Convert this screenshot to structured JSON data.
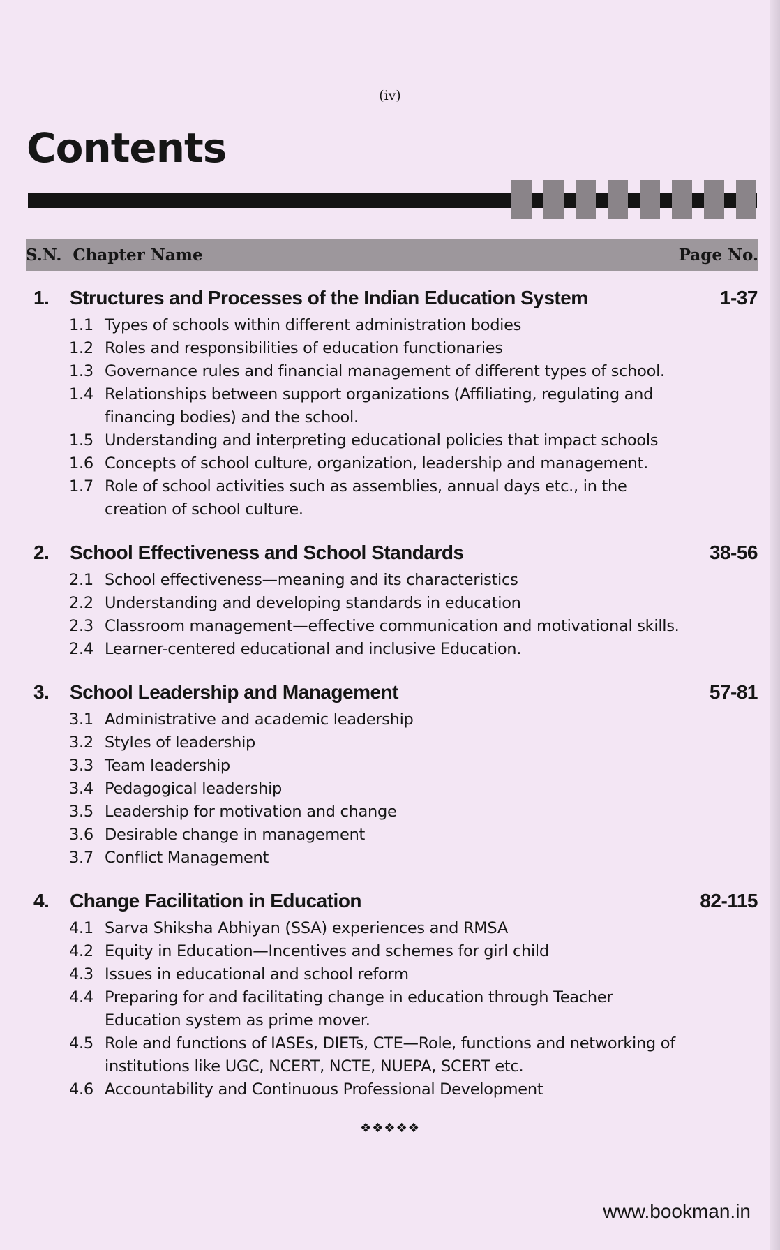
{
  "page_number": "(iv)",
  "title": "Contents",
  "header": {
    "sn": "S.N.",
    "chapter_name": "Chapter Name",
    "page_no": "Page No."
  },
  "chapters": [
    {
      "num": "1.",
      "title": "Structures and Processes of the Indian Education System",
      "pages": "1-37",
      "items": [
        {
          "num": "1.1",
          "text": "Types of schools within different administration bodies"
        },
        {
          "num": "1.2",
          "text": "Roles and responsibilities of education functionaries"
        },
        {
          "num": "1.3",
          "text": "Governance rules and financial management of different types of school."
        },
        {
          "num": "1.4",
          "text": "Relationships between support organizations (Affiliating, regulating and financing bodies) and the school."
        },
        {
          "num": "1.5",
          "text": "Understanding and interpreting educational policies that impact schools"
        },
        {
          "num": "1.6",
          "text": "Concepts of school culture, organization, leadership and management."
        },
        {
          "num": "1.7",
          "text": "Role of school activities such as assemblies, annual days etc., in the creation of school culture."
        }
      ]
    },
    {
      "num": "2.",
      "title": "School Effectiveness and School Standards",
      "pages": "38-56",
      "items": [
        {
          "num": "2.1",
          "text": "School effectiveness—meaning and its characteristics"
        },
        {
          "num": "2.2",
          "text": "Understanding and developing standards in education"
        },
        {
          "num": "2.3",
          "text": "Classroom management—effective communication and motivational skills."
        },
        {
          "num": "2.4",
          "text": "Learner-centered educational and inclusive Education."
        }
      ]
    },
    {
      "num": "3.",
      "title": "School Leadership and Management",
      "pages": "57-81",
      "items": [
        {
          "num": "3.1",
          "text": "Administrative and academic leadership"
        },
        {
          "num": "3.2",
          "text": "Styles of leadership"
        },
        {
          "num": "3.3",
          "text": "Team leadership"
        },
        {
          "num": "3.4",
          "text": "Pedagogical leadership"
        },
        {
          "num": "3.5",
          "text": "Leadership for motivation and change"
        },
        {
          "num": "3.6",
          "text": "Desirable change in management"
        },
        {
          "num": "3.7",
          "text": "Conflict Management"
        }
      ]
    },
    {
      "num": "4.",
      "title": "Change Facilitation in Education",
      "pages": "82-115",
      "items": [
        {
          "num": "4.1",
          "text": "Sarva Shiksha Abhiyan (SSA) experiences and RMSA"
        },
        {
          "num": "4.2",
          "text": "Equity in Education—Incentives and schemes for girl child"
        },
        {
          "num": "4.3",
          "text": "Issues in educational and school reform"
        },
        {
          "num": "4.4",
          "text": "Preparing for and facilitating change in education through Teacher Education system as prime mover."
        },
        {
          "num": "4.5",
          "text": "Role and functions of IASEs, DIETs, CTE—Role, functions and networking of institutions like UGC, NCERT, NCTE, NUEPA, SCERT etc."
        },
        {
          "num": "4.6",
          "text": "Accountability and Continuous Professional Development"
        }
      ]
    }
  ],
  "end_ornament": "❖❖❖❖❖",
  "website": "www.bookman.in"
}
